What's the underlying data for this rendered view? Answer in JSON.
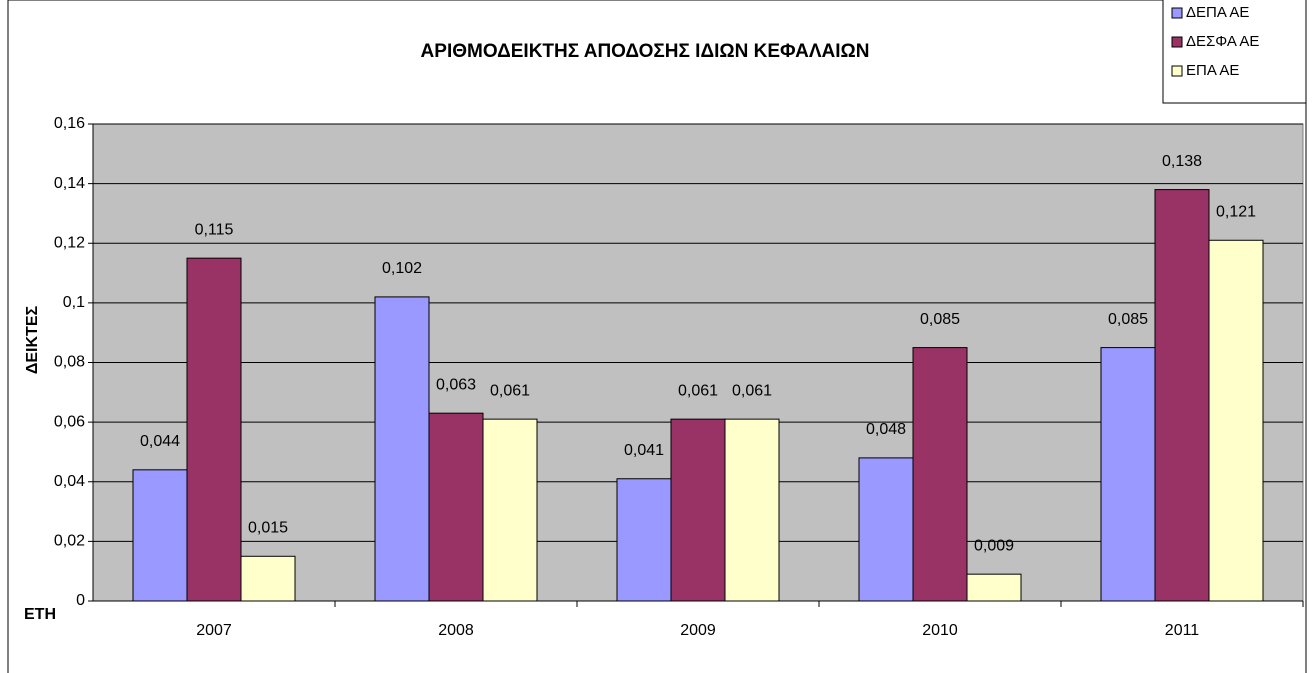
{
  "chart_data": {
    "type": "bar",
    "title": "ΑΡΙΘΜΟΔΕΙΚΤΗΣ ΑΠΟΔΟΣΗΣ ΙΔΙΩΝ ΚΕΦΑΛΑΙΩΝ",
    "x_label": "ΕΤΗ",
    "y_label": "ΔΕΙΚΤΕΣ",
    "categories": [
      "2007",
      "2008",
      "2009",
      "2010",
      "2011"
    ],
    "series": [
      {
        "name": "ΔΕΠΑ ΑΕ",
        "color": "#9999ff",
        "values": [
          0.044,
          0.102,
          0.041,
          0.048,
          0.085
        ],
        "value_labels": [
          "0,044",
          "0,102",
          "0,041",
          "0,048",
          "0,085"
        ]
      },
      {
        "name": "ΔΕΣΦΑ ΑΕ",
        "color": "#993366",
        "values": [
          0.115,
          0.063,
          0.061,
          0.085,
          0.138
        ],
        "value_labels": [
          "0,115",
          "0,063",
          "0,061",
          "0,085",
          "0,138"
        ]
      },
      {
        "name": "ΕΠΑ ΑΕ",
        "color": "#ffffcc",
        "values": [
          0.015,
          0.061,
          0.061,
          0.009,
          0.121
        ],
        "value_labels": [
          "0,015",
          "0,061",
          "0,061",
          "0,009",
          "0,121"
        ]
      }
    ],
    "ylim": [
      0,
      0.16
    ],
    "yticks": [
      0,
      {
        "value": 0.02,
        "label": "0,02"
      },
      {
        "value": 0.04,
        "label": "0,04"
      },
      {
        "value": 0.06,
        "label": "0,06"
      },
      {
        "value": 0.08,
        "label": "0,08"
      },
      {
        "value": 0.1,
        "label": "0,1"
      },
      {
        "value": 0.12,
        "label": "0,12"
      },
      {
        "value": 0.14,
        "label": "0,14"
      },
      {
        "value": 0.16,
        "label": "0,16"
      }
    ],
    "grid": true,
    "plot_background": "#c0c0c0",
    "legend": "top-right"
  }
}
